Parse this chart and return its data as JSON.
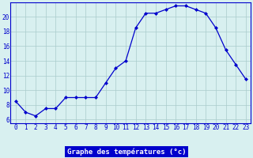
{
  "hours": [
    0,
    1,
    2,
    3,
    4,
    5,
    6,
    7,
    8,
    9,
    10,
    11,
    12,
    13,
    14,
    15,
    16,
    17,
    18,
    19,
    20,
    21,
    22,
    23
  ],
  "temps": [
    8.5,
    7.0,
    6.5,
    7.5,
    7.5,
    9.0,
    9.0,
    9.0,
    9.0,
    11.0,
    13.0,
    14.0,
    18.5,
    20.5,
    20.5,
    21.0,
    21.5,
    21.5,
    21.0,
    20.5,
    18.5,
    15.5,
    13.5,
    11.5
  ],
  "line_color": "#0000cc",
  "marker": "D",
  "marker_size": 2.0,
  "bg_color": "#d8f0f0",
  "grid_color": "#aacccc",
  "axis_color": "#0000cc",
  "tick_label_color": "#0000cc",
  "xlabel": "Graphe des températures (°c)",
  "xlabel_color": "#ffffff",
  "xlabel_bg": "#0000cc",
  "ylim": [
    5.5,
    22.0
  ],
  "yticks": [
    6,
    8,
    10,
    12,
    14,
    16,
    18,
    20
  ],
  "tick_fontsize": 5.5,
  "xlabel_fontsize": 6.5
}
